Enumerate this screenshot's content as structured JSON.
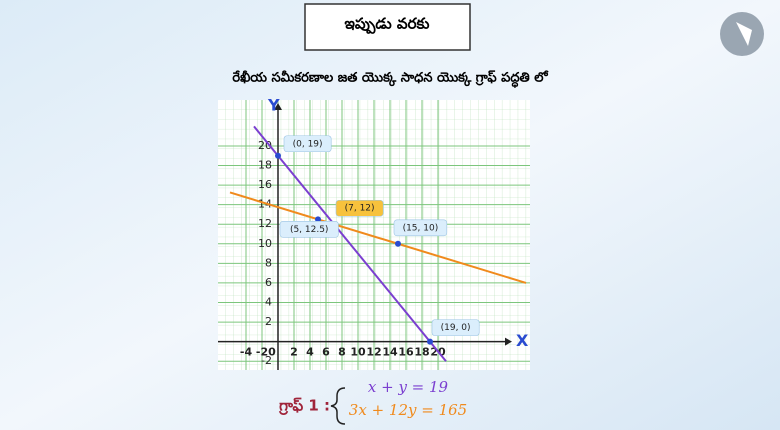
{
  "header": {
    "title": "ఇప్పుడు వరకు",
    "subtitle": "రేఖీయ సమీకరణాల జత యొక్క సాధన యొక్క గ్రాఫ్ పద్ధతి లో"
  },
  "chart_data": {
    "type": "line",
    "xlabel": "X",
    "ylabel": "Y",
    "xlim": [
      -7.5,
      31.5
    ],
    "ylim": [
      -2.9,
      24.7
    ],
    "xticks": [
      -4,
      -2,
      0,
      2,
      4,
      6,
      8,
      10,
      12,
      14,
      16,
      18,
      20
    ],
    "yticks": [
      -2,
      2,
      4,
      6,
      8,
      10,
      12,
      14,
      16,
      18,
      20
    ],
    "grid": true,
    "series": [
      {
        "name": "x + y = 19",
        "color": "#7b3fd0",
        "x": [
          -3,
          21
        ],
        "values": [
          22,
          -2
        ]
      },
      {
        "name": "3x + 12y = 165",
        "color": "#f08a1c",
        "x": [
          -6,
          31
        ],
        "values": [
          15.25,
          6
        ]
      }
    ],
    "points": [
      {
        "x": 0,
        "y": 19,
        "label": "(0, 19)"
      },
      {
        "x": 7,
        "y": 12,
        "label": "(7, 12)",
        "highlight": true
      },
      {
        "x": 5,
        "y": 12.5,
        "label": "(5, 12.5)"
      },
      {
        "x": 15,
        "y": 10,
        "label": "(15, 10)"
      },
      {
        "x": 19,
        "y": 0,
        "label": "(19, 0)"
      }
    ],
    "legend_title": "గ్రాఫ్ 1 :"
  }
}
